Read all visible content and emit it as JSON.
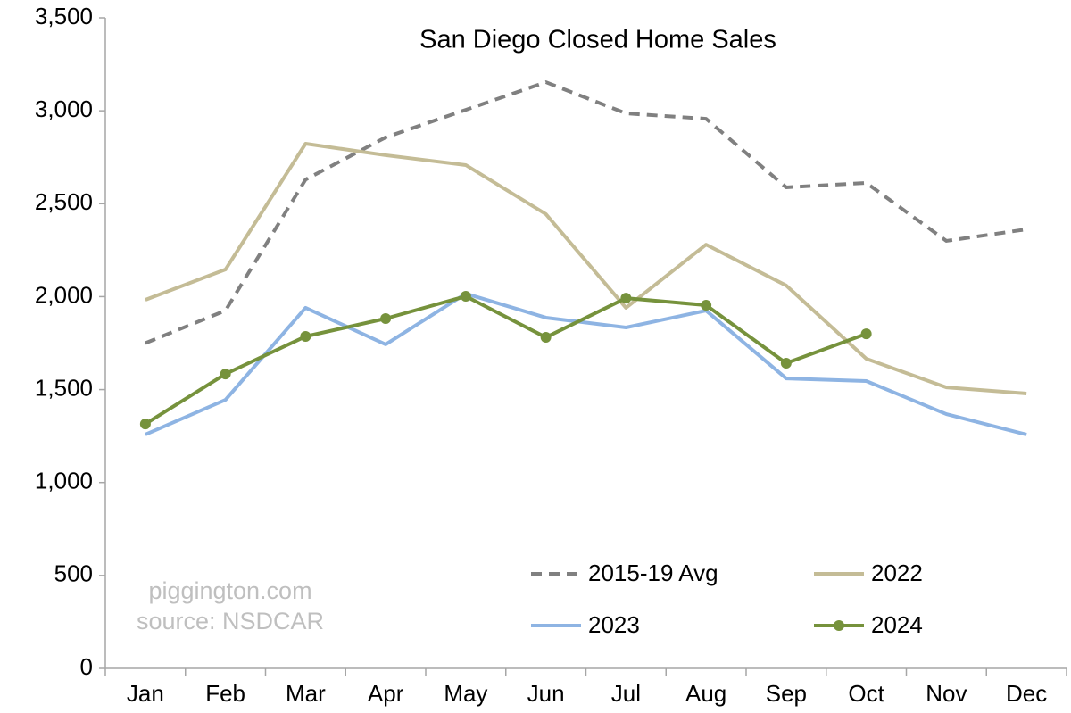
{
  "chart_data": {
    "type": "line",
    "title": "San Diego Closed Home Sales",
    "categories": [
      "Jan",
      "Feb",
      "Mar",
      "Apr",
      "May",
      "Jun",
      "Jul",
      "Aug",
      "Sep",
      "Oct",
      "Nov",
      "Dec"
    ],
    "series": [
      {
        "name": "2015-19 Avg",
        "color": "#808080",
        "dashed": true,
        "markers": false,
        "values": [
          1750,
          1925,
          2630,
          2857,
          3005,
          3154,
          2986,
          2957,
          2588,
          2612,
          2300,
          2362
        ]
      },
      {
        "name": "2022",
        "color": "#c4bc96",
        "dashed": false,
        "markers": false,
        "values": [
          1983,
          2146,
          2823,
          2761,
          2708,
          2444,
          1940,
          2280,
          2060,
          1666,
          1512,
          1479
        ]
      },
      {
        "name": "2023",
        "color": "#8eb4e3",
        "dashed": false,
        "markers": false,
        "values": [
          1258,
          1445,
          1940,
          1743,
          2016,
          1887,
          1834,
          1925,
          1560,
          1546,
          1368,
          1258
        ]
      },
      {
        "name": "2024",
        "color": "#76923c",
        "dashed": false,
        "markers": true,
        "values": [
          1315,
          1584,
          1786,
          1882,
          2002,
          1781,
          1992,
          1954,
          1642,
          1800,
          null,
          null
        ]
      }
    ],
    "ylim": [
      0,
      3500
    ],
    "yticks": [
      0,
      500,
      {
        "value": 1000,
        "label": "1,000"
      },
      {
        "value": 1500,
        "label": "1,500"
      },
      {
        "value": 2000,
        "label": "2,000"
      },
      {
        "value": 2500,
        "label": "2,500"
      },
      {
        "value": 3000,
        "label": "3,000"
      },
      {
        "value": 3500,
        "label": "3,500"
      }
    ],
    "grid": false,
    "annotations": [
      "piggington.com",
      "source: NSDCAR"
    ]
  }
}
